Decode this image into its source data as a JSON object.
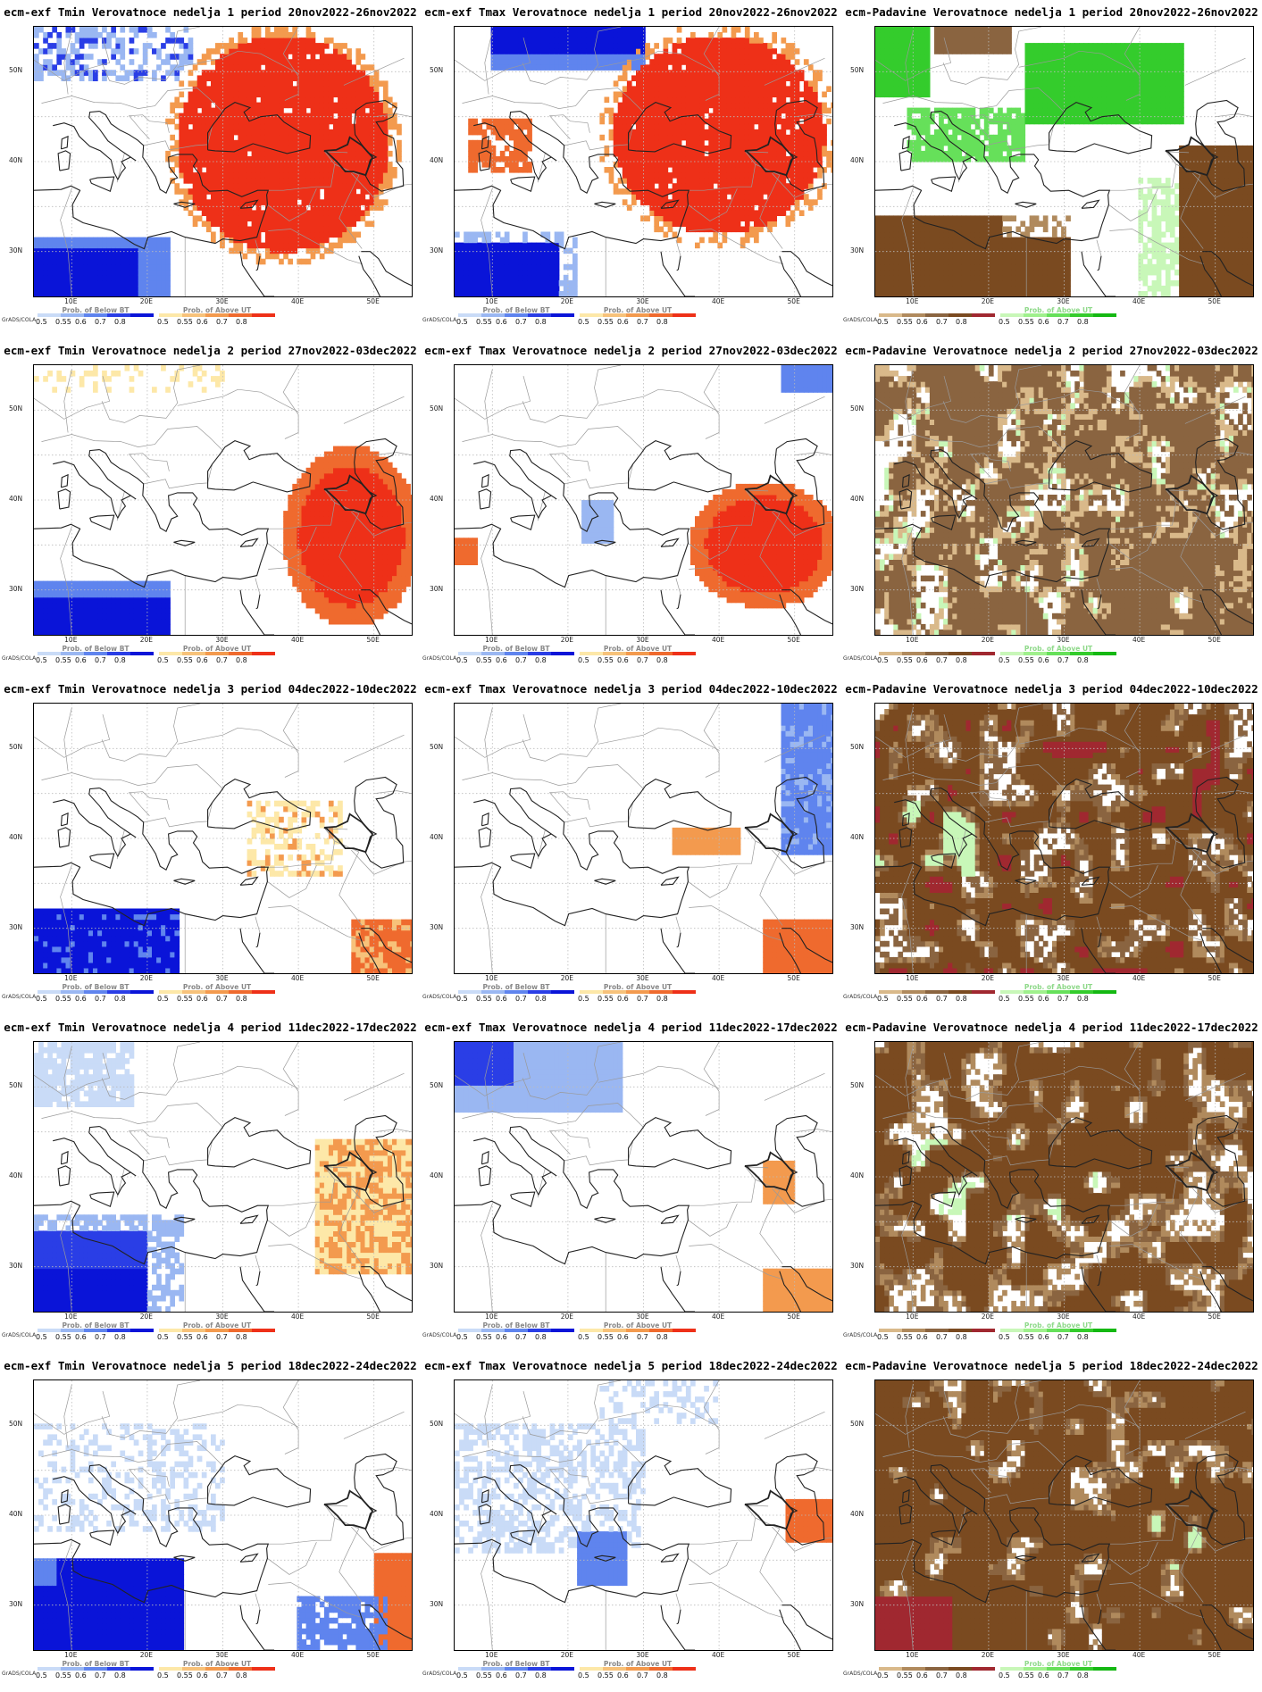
{
  "panels": [
    {
      "title": "ecm-exf Tmin Verovatnoce nedelja 1 period 20nov2022-26nov2022",
      "kind": "temp",
      "scene": "t1min"
    },
    {
      "title": "ecm-exf Tmax Verovatnoce nedelja 1 period 20nov2022-26nov2022",
      "kind": "temp",
      "scene": "t1max"
    },
    {
      "title": "ecm-Padavine Verovatnoce nedelja 1 period 20nov2022-26nov2022",
      "kind": "prec",
      "scene": "p1"
    },
    {
      "title": "ecm-exf Tmin Verovatnoce nedelja 2 period 27nov2022-03dec2022",
      "kind": "temp",
      "scene": "t2min"
    },
    {
      "title": "ecm-exf Tmax Verovatnoce nedelja 2 period 27nov2022-03dec2022",
      "kind": "temp",
      "scene": "t2max"
    },
    {
      "title": "ecm-Padavine Verovatnoce nedelja 2 period 27nov2022-03dec2022",
      "kind": "prec",
      "scene": "p2"
    },
    {
      "title": "ecm-exf Tmin Verovatnoce nedelja 3 period 04dec2022-10dec2022",
      "kind": "temp",
      "scene": "t3min"
    },
    {
      "title": "ecm-exf Tmax Verovatnoce nedelja 3 period 04dec2022-10dec2022",
      "kind": "temp",
      "scene": "t3max"
    },
    {
      "title": "ecm-Padavine Verovatnoce nedelja 3 period 04dec2022-10dec2022",
      "kind": "prec",
      "scene": "p3"
    },
    {
      "title": "ecm-exf Tmin Verovatnoce nedelja 4 period 11dec2022-17dec2022",
      "kind": "temp",
      "scene": "t4min"
    },
    {
      "title": "ecm-exf Tmax Verovatnoce nedelja 4 period 11dec2022-17dec2022",
      "kind": "temp",
      "scene": "t4max"
    },
    {
      "title": "ecm-Padavine Verovatnoce nedelja 4 period 11dec2022-17dec2022",
      "kind": "prec",
      "scene": "p4"
    },
    {
      "title": "ecm-exf Tmin Verovatnoce nedelja 5 period 18dec2022-24dec2022",
      "kind": "temp",
      "scene": "t5min"
    },
    {
      "title": "ecm-exf Tmax Verovatnoce nedelja 5 period 18dec2022-24dec2022",
      "kind": "temp",
      "scene": "t5max"
    },
    {
      "title": "ecm-Padavine Verovatnoce nedelja 5 period 18dec2022-24dec2022",
      "kind": "prec",
      "scene": "p5"
    }
  ],
  "axes": {
    "lat_labels": [
      "50N",
      "40N",
      "30N"
    ],
    "lon_labels": [
      "10E",
      "20E",
      "30E",
      "40E",
      "50E"
    ]
  },
  "legend": {
    "grads_label": "GrADS/COLA",
    "temp_below_title": "Prob. of Below BT",
    "temp_above_title": "Prob. of Above UT",
    "prec_dry_title": "",
    "prec_wet_title": "Prob. of Above UT",
    "ticks": [
      "0.5",
      "0.55",
      "0.6",
      "0.7",
      "0.8"
    ],
    "colors": {
      "below": [
        "#c9dbf7",
        "#9ab7f2",
        "#5f84ee",
        "#2a3ee6",
        "#0a14d8"
      ],
      "above": [
        "#fde8a8",
        "#f7c27a",
        "#f39a4e",
        "#ef6a2e",
        "#ee3018"
      ],
      "dry": [
        "#d9b98a",
        "#b08a5d",
        "#8a6440",
        "#7a4a20",
        "#a02830"
      ],
      "wet": [
        "#c8f7b8",
        "#9ff08c",
        "#66e05a",
        "#34cc2c",
        "#14b812"
      ]
    }
  }
}
